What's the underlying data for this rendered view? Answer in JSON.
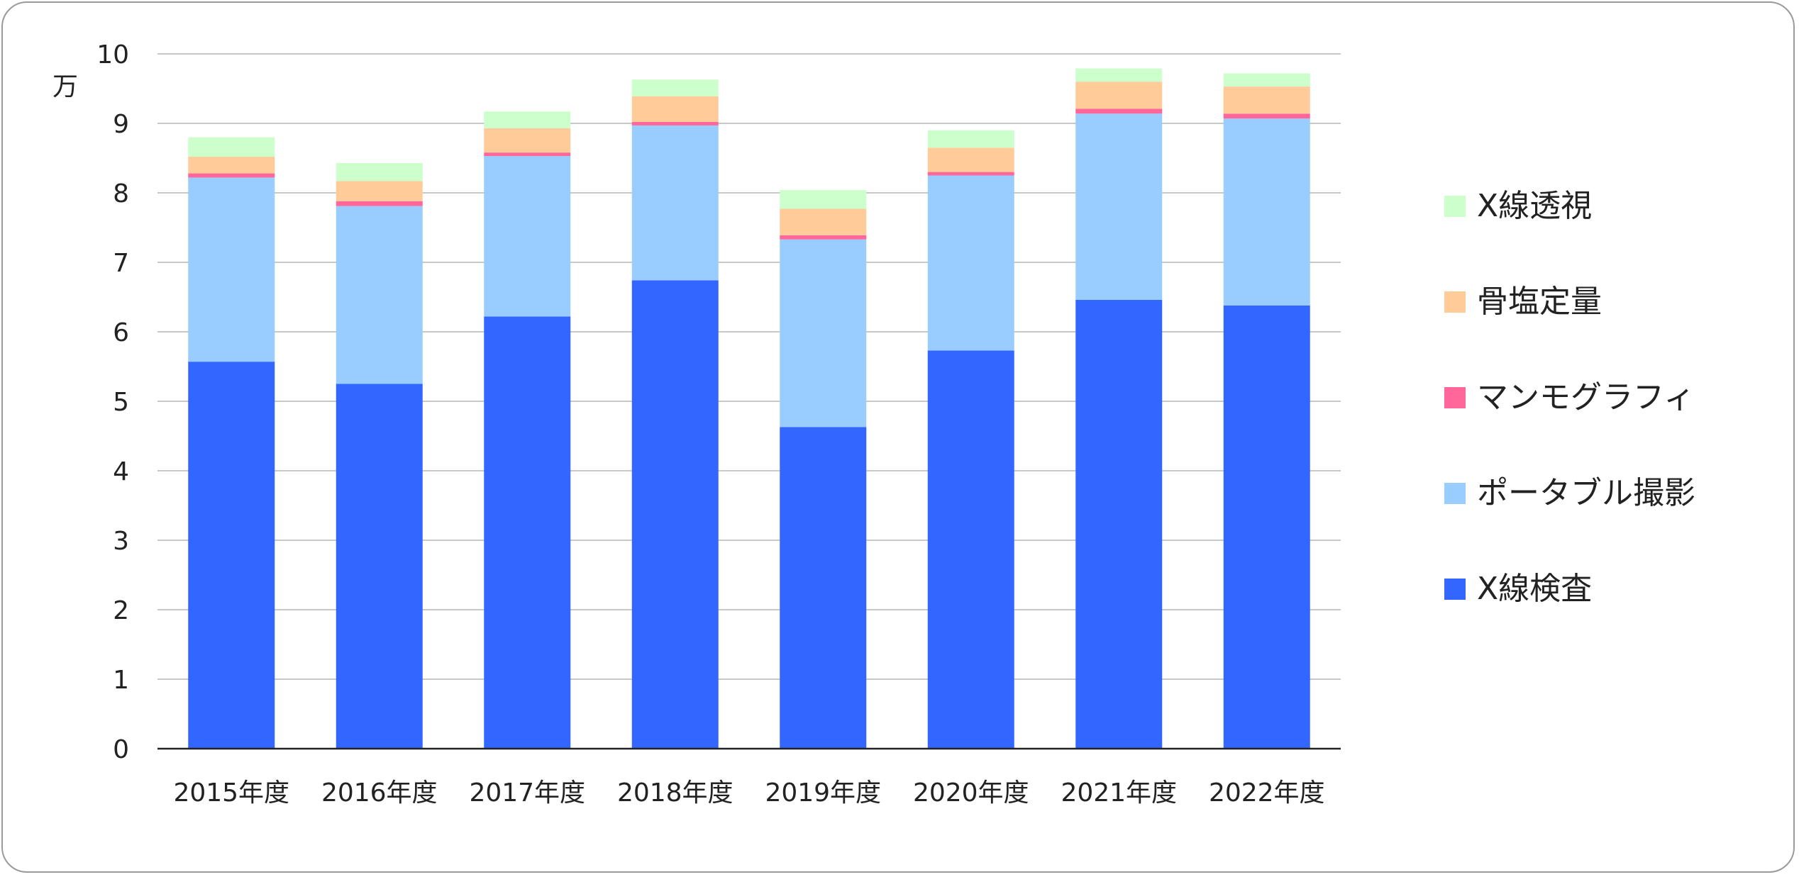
{
  "chart_data": {
    "type": "bar",
    "stacked": true,
    "unit_label": "万",
    "categories": [
      "2015年度",
      "2016年度",
      "2017年度",
      "2018年度",
      "2019年度",
      "2020年度",
      "2021年度",
      "2022年度"
    ],
    "ylim": [
      0,
      10
    ],
    "yticks": [
      0,
      1,
      2,
      3,
      4,
      5,
      6,
      7,
      8,
      9,
      10
    ],
    "grid": true,
    "legend_position": "right",
    "series": [
      {
        "name": "X線検査",
        "color": "#3366ff",
        "values": [
          5.57,
          5.25,
          6.22,
          6.74,
          4.63,
          5.73,
          6.46,
          6.38
        ]
      },
      {
        "name": "ポータブル撮影",
        "color": "#99ccff",
        "values": [
          2.65,
          2.56,
          2.31,
          2.23,
          2.7,
          2.52,
          2.68,
          2.69
        ]
      },
      {
        "name": "マンモグラフィ",
        "color": "#ff6699",
        "values": [
          0.06,
          0.07,
          0.05,
          0.05,
          0.06,
          0.05,
          0.07,
          0.07
        ]
      },
      {
        "name": "骨塩定量",
        "color": "#ffcc99",
        "values": [
          0.24,
          0.29,
          0.35,
          0.37,
          0.38,
          0.35,
          0.39,
          0.39
        ]
      },
      {
        "name": "X線透視",
        "color": "#ccffcc",
        "values": [
          0.28,
          0.26,
          0.24,
          0.24,
          0.27,
          0.25,
          0.19,
          0.19
        ]
      }
    ]
  }
}
